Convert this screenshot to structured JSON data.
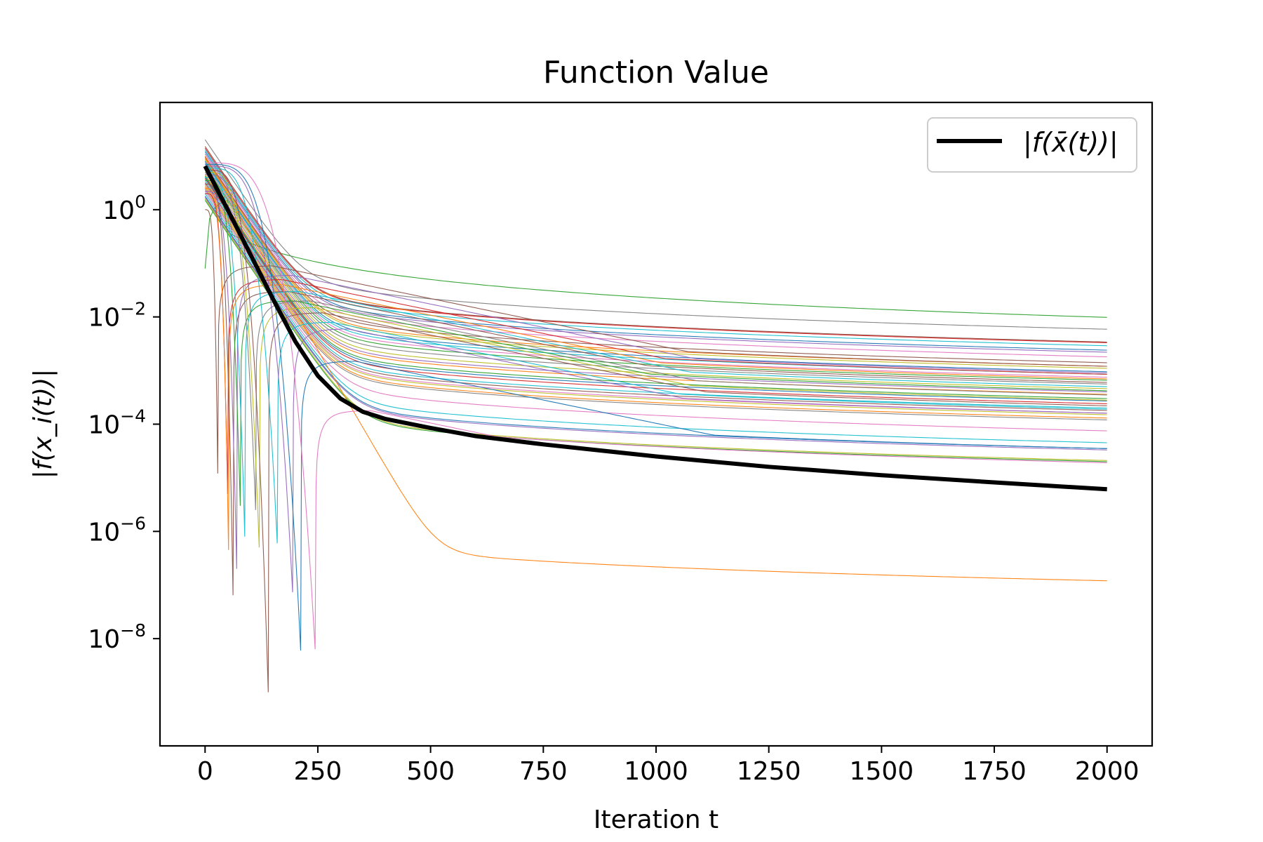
{
  "chart_data": {
    "type": "line",
    "title": "Function Value",
    "xlabel": "Iteration t",
    "ylabel": "|f(x_i(t))|",
    "yscale": "log",
    "xlim": [
      -100,
      2100
    ],
    "ylim_exponents": [
      -10,
      2
    ],
    "x_ticks": [
      0,
      250,
      500,
      750,
      1000,
      1250,
      1500,
      1750,
      2000
    ],
    "x_tick_labels": [
      "0",
      "250",
      "500",
      "750",
      "1000",
      "1250",
      "1500",
      "1750",
      "2000"
    ],
    "y_ticks": [
      {
        "base": "10",
        "exp": "0",
        "value": 1
      },
      {
        "base": "10",
        "exp": "−2",
        "value": 0.01
      },
      {
        "base": "10",
        "exp": "−4",
        "value": 0.0001
      },
      {
        "base": "10",
        "exp": "−6",
        "value": 1e-06
      },
      {
        "base": "10",
        "exp": "−8",
        "value": 1e-08
      }
    ],
    "legend": {
      "position": "upper-right",
      "entries": [
        "|f(x̄(t))|"
      ]
    },
    "grid": false,
    "mean_series": {
      "name": "|f(x̄(t))|",
      "color": "#000000",
      "points": [
        [
          0,
          6.5
        ],
        [
          50,
          1.0
        ],
        [
          100,
          0.15
        ],
        [
          150,
          0.022
        ],
        [
          200,
          0.0035
        ],
        [
          250,
          0.0008
        ],
        [
          300,
          0.0003
        ],
        [
          350,
          0.00017
        ],
        [
          400,
          0.000125
        ],
        [
          500,
          8.5e-05
        ],
        [
          600,
          6e-05
        ],
        [
          750,
          4.2e-05
        ],
        [
          1000,
          2.5e-05
        ],
        [
          1250,
          1.6e-05
        ],
        [
          1500,
          1.12e-05
        ],
        [
          1750,
          8.2e-06
        ],
        [
          2000,
          6.1e-06
        ]
      ]
    },
    "agent_series_params": [
      {
        "c": "#2ca02c",
        "a": 1.8,
        "end": 0.0098,
        "start": 0.08
      },
      {
        "c": "#7f7f7f",
        "a": 1.2,
        "end": 0.0059,
        "start": 20
      },
      {
        "c": "#8c564b",
        "a": 0.75,
        "end": 0.0034,
        "start": 15
      },
      {
        "c": "#d62728",
        "a": 0.75,
        "end": 0.0033,
        "start": 14
      },
      {
        "c": "#17becf",
        "a": 0.5,
        "end": 0.0029,
        "start": 13
      },
      {
        "c": "#1f77b4",
        "a": 0.44,
        "end": 0.0024,
        "start": 12
      },
      {
        "c": "#9467bd",
        "a": 0.4,
        "end": 0.0022,
        "start": 11
      },
      {
        "c": "#e377c2",
        "a": 0.36,
        "end": 0.0018,
        "start": 10
      },
      {
        "c": "#8c564b",
        "a": 0.34,
        "end": 0.0014,
        "start": 9.5
      },
      {
        "c": "#ff7f0e",
        "a": 0.3,
        "end": 0.0012,
        "start": 9
      },
      {
        "c": "#bcbd22",
        "a": 0.28,
        "end": 0.0011,
        "start": 8.5
      },
      {
        "c": "#1f77b4",
        "a": 0.25,
        "end": 0.00095,
        "start": 8
      },
      {
        "c": "#17becf",
        "a": 0.24,
        "end": 0.00085,
        "start": 7.5
      },
      {
        "c": "#e377c2",
        "a": 0.22,
        "end": 0.00075,
        "start": 7
      },
      {
        "c": "#2ca02c",
        "a": 0.2,
        "end": 0.00066,
        "start": 6.5
      },
      {
        "c": "#7f7f7f",
        "a": 0.18,
        "end": 0.00056,
        "start": 6
      },
      {
        "c": "#bcbd22",
        "a": 0.16,
        "end": 0.00046,
        "start": 5.5
      },
      {
        "c": "#9467bd",
        "a": 0.14,
        "end": 0.0004,
        "start": 5
      },
      {
        "c": "#ff7f0e",
        "a": 0.13,
        "end": 0.00036,
        "start": 4.5
      },
      {
        "c": "#2ca02c",
        "a": 0.12,
        "end": 0.0003,
        "start": 4.2
      },
      {
        "c": "#1f77b4",
        "a": 0.11,
        "end": 0.00027,
        "start": 4
      },
      {
        "c": "#d62728",
        "a": 0.1,
        "end": 0.00024,
        "start": 3.8
      },
      {
        "c": "#17becf",
        "a": 0.09,
        "end": 0.0002,
        "start": 3.5
      },
      {
        "c": "#8c564b",
        "a": 0.085,
        "end": 0.00018,
        "start": 3.2
      },
      {
        "c": "#e377c2",
        "a": 0.08,
        "end": 0.00016,
        "start": 3
      },
      {
        "c": "#bcbd22",
        "a": 0.075,
        "end": 0.00015,
        "start": 2.8
      },
      {
        "c": "#ff7f0e",
        "a": 0.07,
        "end": 0.00013,
        "start": 2.6
      },
      {
        "c": "#7f7f7f",
        "a": 0.065,
        "end": 0.00012,
        "start": 2.4
      },
      {
        "c": "#e377c2",
        "a": 0.06,
        "end": 7.5e-05,
        "start": 2.2
      },
      {
        "c": "#17becf",
        "a": 0.04,
        "end": 4.5e-05,
        "start": 2
      },
      {
        "c": "#1f77b4",
        "a": 0.035,
        "end": 3.5e-05,
        "start": 1.8
      },
      {
        "c": "#9467bd",
        "a": 0.03,
        "end": 3.3e-05,
        "start": 1.7
      },
      {
        "c": "#bcbd22",
        "a": 0.025,
        "end": 2.1e-05,
        "start": 1.6
      },
      {
        "c": "#2ca02c",
        "a": 0.02,
        "end": 2e-05,
        "start": 1.5
      },
      {
        "c": "#ff7f0e",
        "a": 1.5e-06,
        "end": 1.2e-07,
        "start": 10
      }
    ],
    "dip_series_params": [
      {
        "c": "#8c564b",
        "x0": 28,
        "depth": 1.2e-05,
        "peak": 0.09,
        "end": 0.0012,
        "start": 1
      },
      {
        "c": "#d62728",
        "x0": 50,
        "depth": 5e-06,
        "peak": 0.05,
        "end": 0.00085,
        "start": 2
      },
      {
        "c": "#ff7f0e",
        "x0": 52,
        "depth": 4.5e-07,
        "peak": 0.04,
        "end": 0.0007,
        "start": 2.5
      },
      {
        "c": "#8c564b",
        "x0": 63,
        "depth": 2e-08,
        "peak": 0.03,
        "end": 0.0006,
        "start": 3
      },
      {
        "c": "#9467bd",
        "x0": 70,
        "depth": 2e-07,
        "peak": 0.06,
        "end": 0.0009,
        "start": 2.2
      },
      {
        "c": "#2ca02c",
        "x0": 78,
        "depth": 3e-06,
        "peak": 0.02,
        "end": 0.00042,
        "start": 3.5
      },
      {
        "c": "#17becf",
        "x0": 88,
        "depth": 8e-07,
        "peak": 0.03,
        "end": 0.0005,
        "start": 4
      },
      {
        "c": "#7f7f7f",
        "x0": 112,
        "depth": 2.5e-06,
        "peak": 0.02,
        "end": 0.00035,
        "start": 4.5
      },
      {
        "c": "#bcbd22",
        "x0": 120,
        "depth": 5e-07,
        "peak": 0.015,
        "end": 0.00028,
        "start": 5
      },
      {
        "c": "#8c564b",
        "x0": 140,
        "depth": 1e-09,
        "peak": 0.012,
        "end": 0.00022,
        "start": 5.5
      },
      {
        "c": "#17becf",
        "x0": 160,
        "depth": 6e-07,
        "peak": 0.008,
        "end": 0.00019,
        "start": 6
      },
      {
        "c": "#9467bd",
        "x0": 195,
        "depth": 5e-08,
        "peak": 0.006,
        "end": 0.00016,
        "start": 6.5
      },
      {
        "c": "#1f77b4",
        "x0": 212,
        "depth": 6e-09,
        "peak": 0.0015,
        "end": 3.5e-05,
        "start": 7
      },
      {
        "c": "#e377c2",
        "x0": 245,
        "depth": 4.5e-09,
        "peak": 0.00018,
        "end": 1.9e-05,
        "start": 7.5
      }
    ]
  }
}
